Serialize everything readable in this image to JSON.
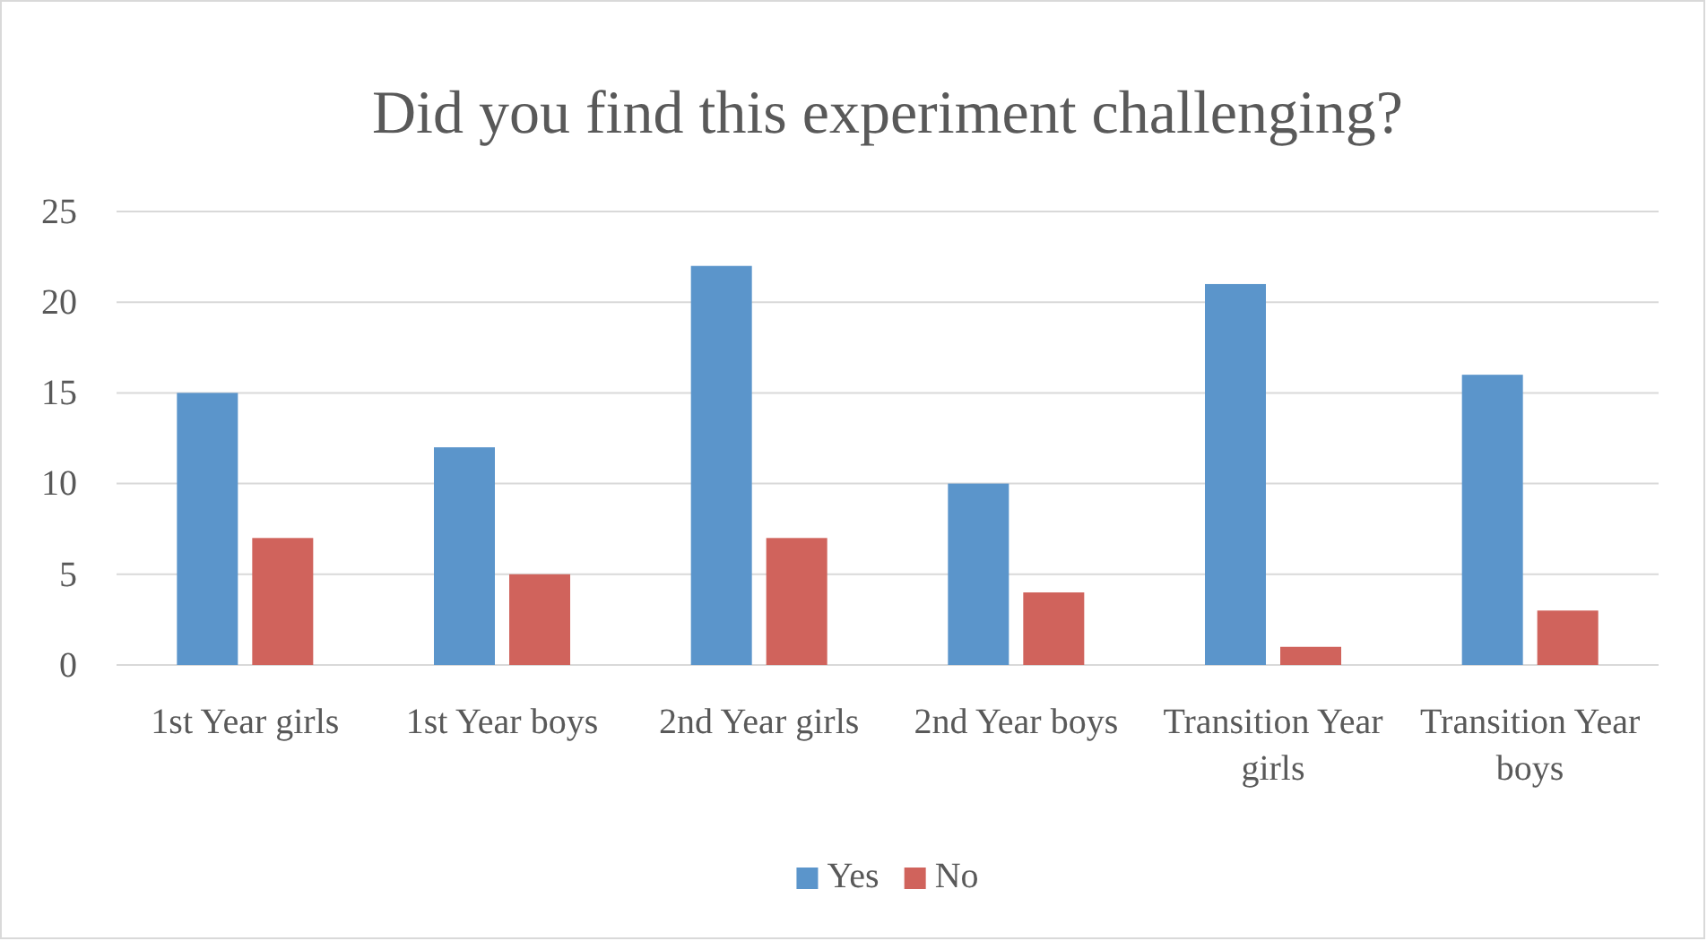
{
  "chart_data": {
    "type": "bar",
    "title": "Did you find this experiment challenging?",
    "categories": [
      "1st Year girls",
      "1st Year boys",
      "2nd Year girls",
      "2nd Year boys",
      "Transition Year girls",
      "Transition Year boys"
    ],
    "series": [
      {
        "name": "Yes",
        "color": "#5b95cb",
        "values": [
          15,
          12,
          22,
          10,
          21,
          16
        ]
      },
      {
        "name": "No",
        "color": "#d0635c",
        "values": [
          7,
          5,
          7,
          4,
          1,
          3
        ]
      }
    ],
    "ylim": [
      0,
      25
    ],
    "yticks": [
      0,
      5,
      10,
      15,
      20,
      25
    ],
    "grid": "y",
    "legend": "bottom"
  }
}
